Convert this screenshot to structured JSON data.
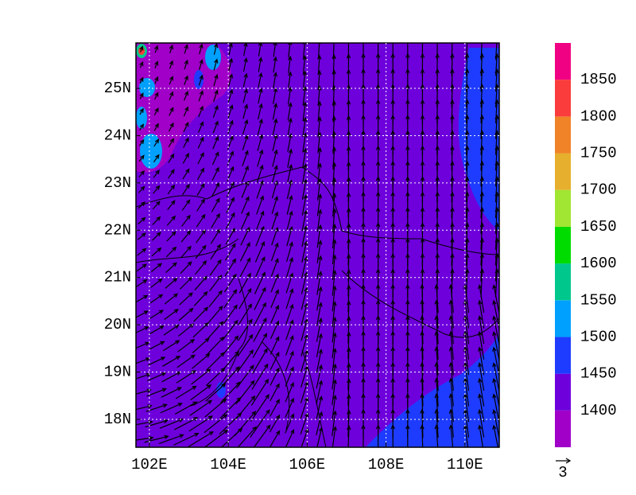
{
  "map": {
    "xlim": [
      101.66,
      110.87
    ],
    "ylim": [
      17.41,
      25.96
    ],
    "xticks": [
      {
        "value": 102,
        "label": "102E"
      },
      {
        "value": 104,
        "label": "104E"
      },
      {
        "value": 106,
        "label": "106E"
      },
      {
        "value": 108,
        "label": "108E"
      },
      {
        "value": 110,
        "label": "110E"
      }
    ],
    "yticks": [
      {
        "value": 18,
        "label": "18N"
      },
      {
        "value": 19,
        "label": "19N"
      },
      {
        "value": 20,
        "label": "20N"
      },
      {
        "value": 21,
        "label": "21N"
      },
      {
        "value": 22,
        "label": "22N"
      },
      {
        "value": 23,
        "label": "23N"
      },
      {
        "value": 24,
        "label": "24N"
      },
      {
        "value": 25,
        "label": "25N"
      }
    ],
    "grid": true
  },
  "colorbar": {
    "levels": [
      1400,
      1450,
      1500,
      1550,
      1600,
      1650,
      1700,
      1750,
      1800,
      1850
    ],
    "colors": [
      "#a000c8",
      "#6e00dc",
      "#1e3cff",
      "#00a0ff",
      "#00c88c",
      "#00dc00",
      "#a0e632",
      "#e6af2d",
      "#f08228",
      "#fa3c3c",
      "#f00082"
    ]
  },
  "vector_reference": {
    "label": "3"
  }
}
